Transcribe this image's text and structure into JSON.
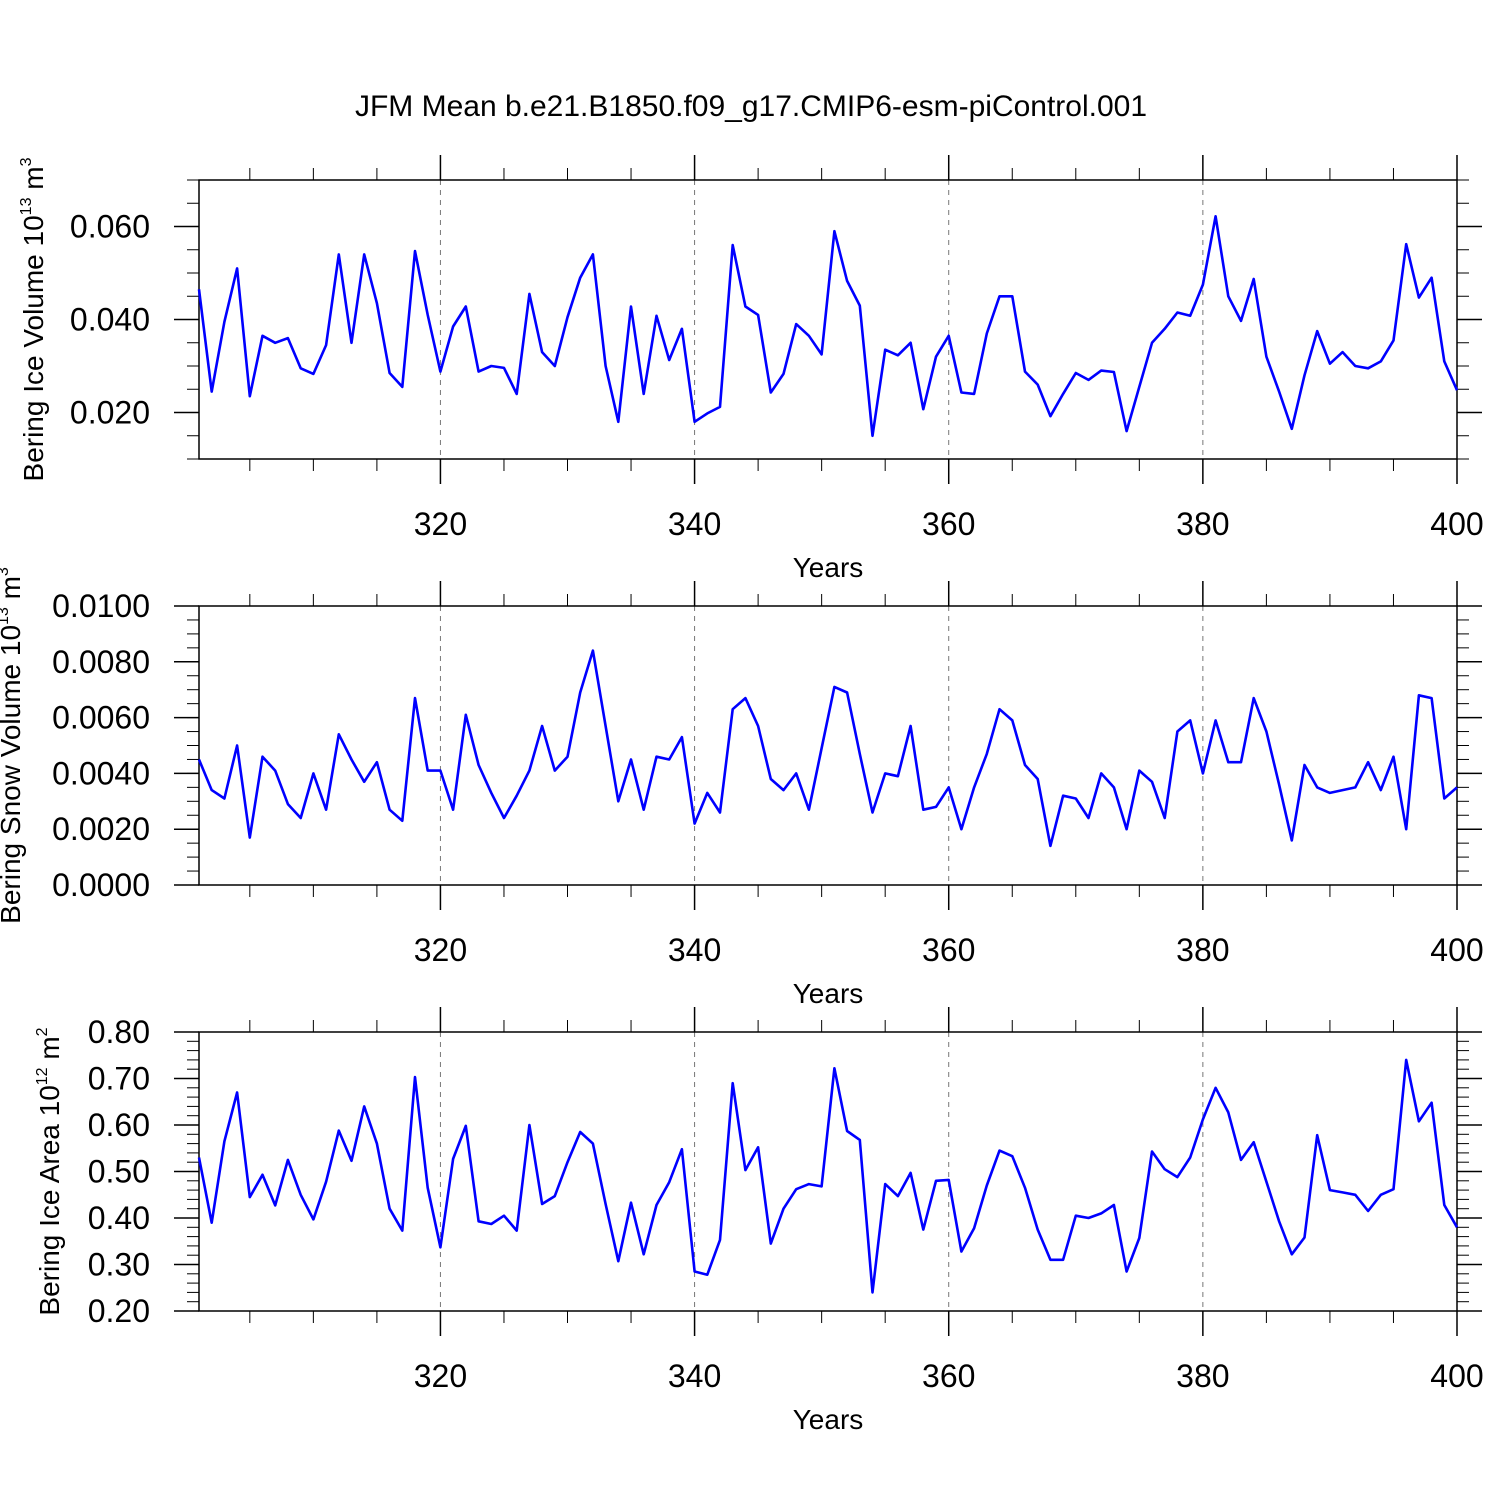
{
  "title": "JFM Mean b.e21.B1850.f09_g17.CMIP6-esm-piControl.001",
  "colors": {
    "line": "#0000ff",
    "axis": "#000000",
    "grid": "#777777"
  },
  "chart_data": [
    {
      "type": "line",
      "ylabel": {
        "main": "Bering Ice Volume 10",
        "exp": "13",
        "unit": " m",
        "unit_exp": "3"
      },
      "xlabel": "Years",
      "xlim": [
        301,
        400
      ],
      "ylim": [
        0.01,
        0.07
      ],
      "xticks": [
        320,
        340,
        360,
        380,
        400
      ],
      "xtick_labels": [
        "320",
        "340",
        "360",
        "380",
        "400"
      ],
      "yticks": [
        0.02,
        0.04,
        0.06
      ],
      "ytick_labels": [
        "0.020",
        "0.040",
        "0.060"
      ],
      "ygrid_minor_step": 0.005,
      "vgrid": [
        320,
        340,
        360,
        380
      ],
      "series": [
        {
          "name": "Bering Ice Volume",
          "x_start": 301,
          "values": [
            0.0465,
            0.0245,
            0.0395,
            0.051,
            0.0235,
            0.0365,
            0.035,
            0.036,
            0.0295,
            0.0283,
            0.0345,
            0.054,
            0.035,
            0.054,
            0.0435,
            0.0285,
            0.0255,
            0.0547,
            0.041,
            0.0288,
            0.0385,
            0.0428,
            0.0288,
            0.03,
            0.0296,
            0.024,
            0.0455,
            0.033,
            0.03,
            0.0405,
            0.049,
            0.054,
            0.03,
            0.018,
            0.0428,
            0.024,
            0.0408,
            0.0313,
            0.038,
            0.018,
            0.0198,
            0.0212,
            0.056,
            0.0428,
            0.041,
            0.0243,
            0.0283,
            0.039,
            0.0365,
            0.0325,
            0.059,
            0.0483,
            0.043,
            0.015,
            0.0335,
            0.0323,
            0.035,
            0.0207,
            0.032,
            0.0365,
            0.0243,
            0.024,
            0.037,
            0.045,
            0.045,
            0.0288,
            0.026,
            0.0192,
            0.024,
            0.0285,
            0.027,
            0.029,
            0.0287,
            0.016,
            0.0255,
            0.035,
            0.038,
            0.0415,
            0.0408,
            0.0475,
            0.0622,
            0.045,
            0.0397,
            0.0487,
            0.032,
            0.0245,
            0.0165,
            0.028,
            0.0375,
            0.0305,
            0.033,
            0.03,
            0.0295,
            0.031,
            0.0355,
            0.0562,
            0.0447,
            0.049,
            0.031,
            0.0248
          ]
        }
      ]
    },
    {
      "type": "line",
      "ylabel": {
        "main": "Bering Snow Volume 10",
        "exp": "13",
        "unit": " m",
        "unit_exp": "3"
      },
      "xlabel": "Years",
      "xlim": [
        301,
        400
      ],
      "ylim": [
        0.0,
        0.01
      ],
      "xticks": [
        320,
        340,
        360,
        380,
        400
      ],
      "xtick_labels": [
        "320",
        "340",
        "360",
        "380",
        "400"
      ],
      "yticks": [
        0.0,
        0.002,
        0.004,
        0.006,
        0.008,
        0.01
      ],
      "ytick_labels": [
        "0.0000",
        "0.0020",
        "0.0040",
        "0.0060",
        "0.0080",
        "0.0100"
      ],
      "ygrid_minor_step": 0.0005,
      "vgrid": [
        320,
        340,
        360,
        380
      ],
      "series": [
        {
          "name": "Bering Snow Volume",
          "x_start": 301,
          "values": [
            0.0045,
            0.0034,
            0.0031,
            0.005,
            0.0017,
            0.0046,
            0.0041,
            0.0029,
            0.0024,
            0.004,
            0.0027,
            0.0054,
            0.0045,
            0.0037,
            0.0044,
            0.0027,
            0.0023,
            0.0067,
            0.0041,
            0.0041,
            0.0027,
            0.0061,
            0.0043,
            0.0033,
            0.0024,
            0.0032,
            0.0041,
            0.0057,
            0.0041,
            0.0046,
            0.0069,
            0.0084,
            0.0057,
            0.003,
            0.0045,
            0.0027,
            0.0046,
            0.0045,
            0.0053,
            0.0022,
            0.0033,
            0.0026,
            0.0063,
            0.0067,
            0.0057,
            0.0038,
            0.0034,
            0.004,
            0.0027,
            0.0049,
            0.0071,
            0.0069,
            0.0047,
            0.0026,
            0.004,
            0.0039,
            0.0057,
            0.0027,
            0.0028,
            0.0035,
            0.002,
            0.0035,
            0.0047,
            0.0063,
            0.0059,
            0.0043,
            0.0038,
            0.0014,
            0.0032,
            0.0031,
            0.0024,
            0.004,
            0.0035,
            0.002,
            0.0041,
            0.0037,
            0.0024,
            0.0055,
            0.0059,
            0.004,
            0.0059,
            0.0044,
            0.0044,
            0.0067,
            0.0055,
            0.0036,
            0.0016,
            0.0043,
            0.0035,
            0.0033,
            0.0034,
            0.0035,
            0.0044,
            0.0034,
            0.0046,
            0.002,
            0.0068,
            0.0067,
            0.0031,
            0.0035
          ]
        }
      ]
    },
    {
      "type": "line",
      "ylabel": {
        "main": "Bering Ice Area 10",
        "exp": "12",
        "unit": " m",
        "unit_exp": "2"
      },
      "xlabel": "Years",
      "xlim": [
        301,
        400
      ],
      "ylim": [
        0.2,
        0.8
      ],
      "xticks": [
        320,
        340,
        360,
        380,
        400
      ],
      "xtick_labels": [
        "320",
        "340",
        "360",
        "380",
        "400"
      ],
      "yticks": [
        0.2,
        0.3,
        0.4,
        0.5,
        0.6,
        0.7,
        0.8
      ],
      "ytick_labels": [
        "0.20",
        "0.30",
        "0.40",
        "0.50",
        "0.60",
        "0.70",
        "0.80"
      ],
      "ygrid_minor_step": 0.02,
      "vgrid": [
        320,
        340,
        360,
        380
      ],
      "series": [
        {
          "name": "Bering Ice Area",
          "x_start": 301,
          "values": [
            0.53,
            0.39,
            0.565,
            0.67,
            0.445,
            0.493,
            0.427,
            0.525,
            0.45,
            0.397,
            0.478,
            0.588,
            0.523,
            0.64,
            0.56,
            0.42,
            0.373,
            0.703,
            0.465,
            0.337,
            0.527,
            0.598,
            0.393,
            0.387,
            0.405,
            0.373,
            0.6,
            0.43,
            0.447,
            0.52,
            0.585,
            0.56,
            0.43,
            0.307,
            0.433,
            0.322,
            0.428,
            0.477,
            0.548,
            0.285,
            0.278,
            0.353,
            0.69,
            0.503,
            0.552,
            0.345,
            0.42,
            0.462,
            0.473,
            0.468,
            0.722,
            0.587,
            0.568,
            0.24,
            0.473,
            0.447,
            0.497,
            0.375,
            0.48,
            0.482,
            0.328,
            0.378,
            0.47,
            0.545,
            0.533,
            0.465,
            0.375,
            0.31,
            0.31,
            0.405,
            0.4,
            0.41,
            0.428,
            0.285,
            0.357,
            0.543,
            0.505,
            0.488,
            0.53,
            0.612,
            0.68,
            0.627,
            0.525,
            0.563,
            0.478,
            0.393,
            0.322,
            0.358,
            0.578,
            0.46,
            0.455,
            0.45,
            0.415,
            0.45,
            0.462,
            0.74,
            0.608,
            0.648,
            0.428,
            0.38
          ]
        }
      ]
    }
  ]
}
